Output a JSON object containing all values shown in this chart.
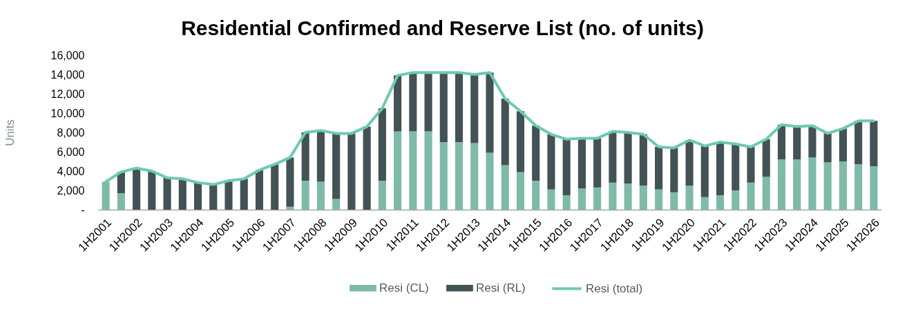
{
  "chart_data": {
    "type": "bar",
    "stacked": true,
    "title": "Residential Confirmed and Reserve List (no. of units)",
    "ylabel": "Units",
    "categories": [
      "1H2001",
      null,
      "1H2002",
      null,
      "1H2003",
      null,
      "1H2004",
      null,
      "1H2005",
      null,
      "1H2006",
      null,
      "1H2007",
      null,
      "1H2008",
      null,
      "1H2009",
      null,
      "1H2010",
      null,
      "1H2011",
      null,
      "1H2012",
      null,
      "1H2013",
      null,
      "1H2014",
      null,
      "1H2015",
      null,
      "1H2016",
      null,
      "1H2017",
      null,
      "1H2018",
      null,
      "1H2019",
      null,
      "1H2020",
      null,
      "1H2021",
      null,
      "1H2022",
      null,
      "1H2023",
      null,
      "1H2024",
      null,
      "1H2025",
      null,
      "1H2026"
    ],
    "series": [
      {
        "name": "Resi (CL)",
        "color": "#7fbaa9",
        "values": [
          2900,
          1700,
          0,
          0,
          0,
          0,
          0,
          0,
          0,
          0,
          0,
          0,
          300,
          3000,
          2900,
          1100,
          0,
          0,
          3000,
          8100,
          8100,
          8100,
          7000,
          7000,
          6900,
          5900,
          4600,
          3900,
          3000,
          2100,
          1500,
          2200,
          2300,
          2800,
          2700,
          2500,
          2100,
          1800,
          2500,
          1300,
          1500,
          2000,
          2800,
          3400,
          5200,
          5200,
          5400,
          4900,
          5000,
          4700,
          4500
        ]
      },
      {
        "name": "Resi (RL)",
        "color": "#435254",
        "values": [
          0,
          2200,
          4300,
          4000,
          3300,
          3200,
          2800,
          2600,
          3000,
          3200,
          4100,
          4700,
          5100,
          5000,
          5300,
          6800,
          7900,
          8600,
          7500,
          5800,
          6100,
          6100,
          7200,
          7200,
          7100,
          8300,
          6900,
          6300,
          5700,
          5700,
          5800,
          5200,
          5100,
          5300,
          5300,
          5300,
          4400,
          4600,
          4700,
          5300,
          5500,
          4800,
          3700,
          3900,
          3600,
          3400,
          3300,
          3000,
          3400,
          4500,
          4700
        ]
      },
      {
        "name": "Resi (total)",
        "type": "line",
        "color": "#6ccab1",
        "values": [
          2900,
          3900,
          4300,
          4000,
          3300,
          3200,
          2800,
          2600,
          3000,
          3200,
          4100,
          4700,
          5400,
          8000,
          8200,
          7900,
          7900,
          8600,
          10500,
          13900,
          14200,
          14200,
          14200,
          14200,
          14000,
          14200,
          11500,
          10200,
          8700,
          7800,
          7300,
          7400,
          7400,
          8100,
          8000,
          7800,
          6500,
          6400,
          7200,
          6600,
          7000,
          6800,
          6500,
          7300,
          8800,
          8600,
          8700,
          7900,
          8400,
          9200,
          9200
        ]
      }
    ],
    "ylim": [
      0,
      16000
    ],
    "yticks": [
      {
        "value": 0,
        "label": "-"
      },
      {
        "value": 2000,
        "label": "2,000"
      },
      {
        "value": 4000,
        "label": "4,000"
      },
      {
        "value": 6000,
        "label": "6,000"
      },
      {
        "value": 8000,
        "label": "8,000"
      },
      {
        "value": 10000,
        "label": "10,000"
      },
      {
        "value": 12000,
        "label": "12,000"
      },
      {
        "value": 14000,
        "label": "14,000"
      },
      {
        "value": 16000,
        "label": "16,000"
      }
    ],
    "grid": false,
    "legend": "bottom"
  }
}
